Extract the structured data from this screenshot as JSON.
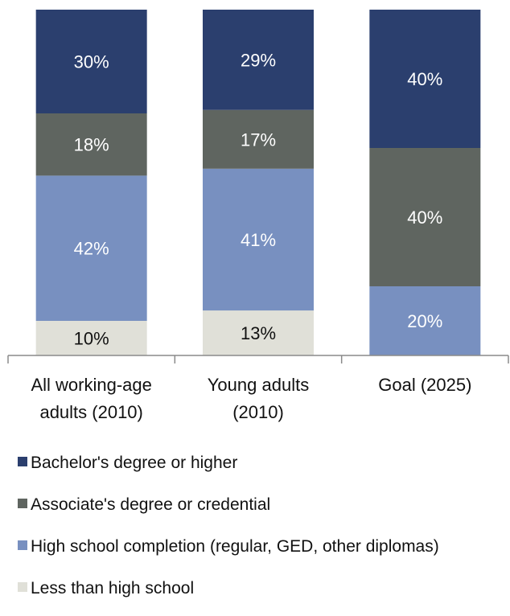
{
  "chart_data": {
    "type": "bar",
    "stacked": true,
    "categories": [
      [
        "All working-age",
        "adults (2010)"
      ],
      [
        "Young adults",
        "(2010)"
      ],
      [
        "Goal (2025)"
      ]
    ],
    "series": [
      {
        "name": "Less than high school",
        "color": "#e0e0d8",
        "label_color": "#111111",
        "values": [
          10,
          13,
          0
        ],
        "labels": [
          "10%",
          "13%",
          ""
        ]
      },
      {
        "name": "High school completion (regular, GED, other diplomas)",
        "color": "#7890c0",
        "label_color": "#ffffff",
        "values": [
          42,
          41,
          20
        ],
        "labels": [
          "42%",
          "41%",
          "20%"
        ]
      },
      {
        "name": "Associate's degree or credential",
        "color": "#5f6560",
        "label_color": "#ffffff",
        "values": [
          18,
          17,
          40
        ],
        "labels": [
          "18%",
          "17%",
          "40%"
        ]
      },
      {
        "name": "Bachelor's degree or higher",
        "color": "#2b3f6e",
        "label_color": "#ffffff",
        "values": [
          30,
          29,
          40
        ],
        "labels": [
          "30%",
          "29%",
          "40%"
        ]
      }
    ],
    "ylim": [
      0,
      100
    ],
    "grid": false,
    "legend_position": "bottom",
    "legend_order": [
      3,
      2,
      1,
      0
    ]
  }
}
